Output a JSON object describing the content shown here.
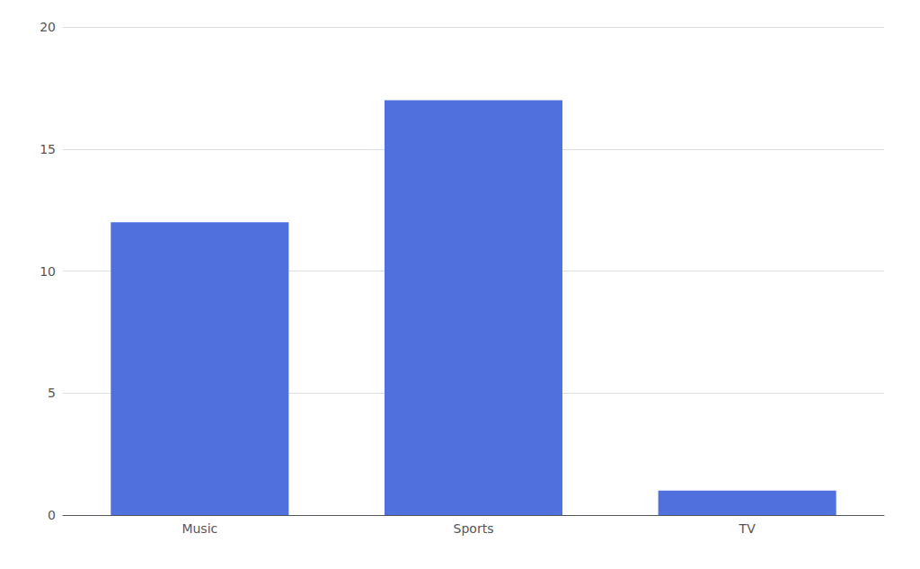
{
  "chart_data": {
    "type": "bar",
    "categories": [
      "Music",
      "Sports",
      "TV"
    ],
    "values": [
      12,
      17,
      1
    ],
    "ylim": [
      0,
      20
    ],
    "yticks": [
      0,
      5,
      10,
      15,
      20
    ],
    "grid": true
  }
}
